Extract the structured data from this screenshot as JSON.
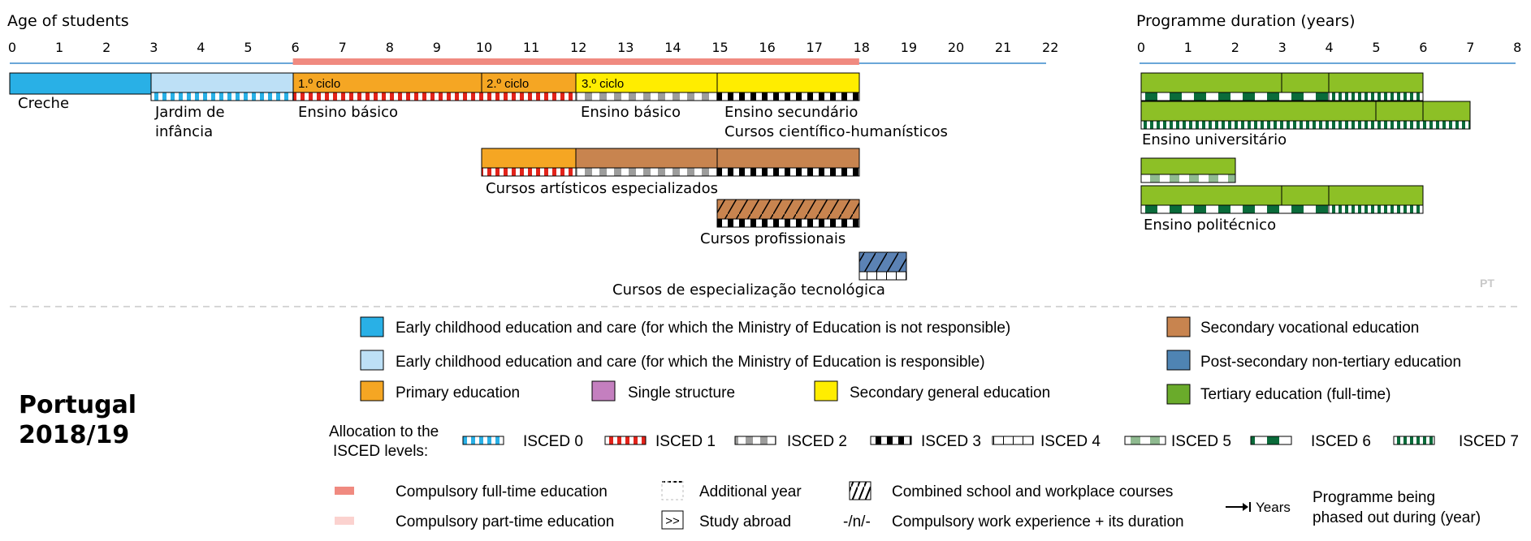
{
  "header": {
    "age_axis_title": "Age of students",
    "age_ticks": [
      "0",
      "1",
      "2",
      "3",
      "4",
      "5",
      "6",
      "7",
      "8",
      "9",
      "10",
      "11",
      "12",
      "13",
      "14",
      "15",
      "16",
      "17",
      "18",
      "19",
      "20",
      "21",
      "22"
    ],
    "duration_axis_title": "Programme duration (years)",
    "duration_ticks": [
      "0",
      "1",
      "2",
      "3",
      "4",
      "5",
      "6",
      "7",
      "8"
    ]
  },
  "compulsory": {
    "full_time": {
      "from": 6,
      "to": 18
    }
  },
  "programmes": {
    "creche": "Creche",
    "jardim_1": "Jardim de",
    "jardim_2": "infância",
    "basico_1": "Ensino básico",
    "ciclo_1": "1.º ciclo",
    "ciclo_2": "2.º ciclo",
    "ciclo_3": "3.º ciclo",
    "basico_2": "Ensino básico",
    "secundario_1": "Ensino secundário",
    "secundario_2": "Cursos científico-humanísticos",
    "artisticos": "Cursos artísticos especializados",
    "profissionais": "Cursos profissionais",
    "especializacao": "Cursos de especialização tecnológica",
    "universitario": "Ensino universitário",
    "politecnico": "Ensino politécnico"
  },
  "corner_code": "PT",
  "country": {
    "name": "Portugal",
    "year": "2018/19"
  },
  "legend": {
    "ecec_not_moe": "Early childhood education and care (for which the Ministry of Education is not responsible)",
    "ecec_moe": "Early childhood education and care (for which the Ministry of Education is responsible)",
    "primary": "Primary education",
    "single": "Single structure",
    "secondary_general": "Secondary general education",
    "secondary_vocational": "Secondary vocational education",
    "post_secondary": "Post-secondary non-tertiary education",
    "tertiary": "Tertiary education (full-time)",
    "allocation_1": "Allocation to the",
    "allocation_2": "ISCED levels:",
    "isced": [
      "ISCED 0",
      "ISCED 1",
      "ISCED 2",
      "ISCED 3",
      "ISCED 4",
      "ISCED 5",
      "ISCED 6",
      "ISCED 7"
    ],
    "compulsory_full": "Compulsory full-time education",
    "compulsory_part": "Compulsory part-time education",
    "additional_year": "Additional year",
    "study_abroad": "Study abroad",
    "study_abroad_symbol": ">>",
    "combined": "Combined school and workplace courses",
    "work_symbol": "-/n/-",
    "work_experience": "Compulsory work experience + its duration",
    "years_label": "Years",
    "phased_1": "Programme being",
    "phased_2": "phased out during (year)"
  },
  "colors": {
    "creche": "#29b0e6",
    "jardim": "#bde0f6",
    "primary": "#f5a623",
    "single": "#c47fbf",
    "secondary_general": "#ffed00",
    "secondary_vocational": "#c8844f",
    "post_secondary": "#5b82b4",
    "tertiary": "#8dc026",
    "compulsory_full": "#f08a80",
    "compulsory_part": "#fbd2cf",
    "axis": "#6aa6d8"
  }
}
